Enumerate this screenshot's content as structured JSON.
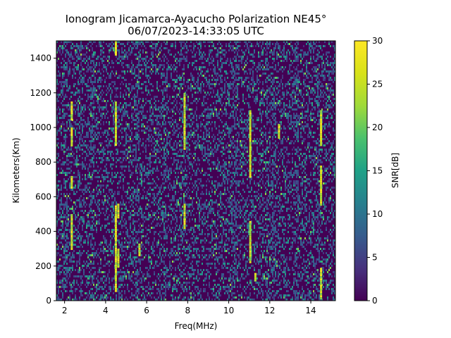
{
  "chart_data": {
    "type": "heatmap",
    "title": "Ionogram Jicamarca-Ayacucho Polarization NE45°",
    "subtitle": "06/07/2023-14:33:05 UTC",
    "xlabel": "Freq(MHz)",
    "ylabel": "Kilometers(Km)",
    "xlim": [
      1.6,
      15.2
    ],
    "ylim": [
      0,
      1500
    ],
    "xticks": [
      2,
      4,
      6,
      8,
      10,
      12,
      14
    ],
    "yticks": [
      0,
      200,
      400,
      600,
      800,
      1000,
      1200,
      1400
    ],
    "colorbar": {
      "label": "SNR[dB]",
      "range": [
        0,
        30
      ],
      "ticks": [
        0,
        5,
        10,
        15,
        20,
        25,
        30
      ],
      "colormap": "viridis"
    },
    "grid": false,
    "noise_floor_color": "#440154",
    "strong_echo_traces": [
      {
        "freq_mhz": 2.35,
        "km_ranges": [
          [
            300,
            500
          ],
          [
            650,
            720
          ],
          [
            900,
            1000
          ],
          [
            1050,
            1150
          ]
        ]
      },
      {
        "freq_mhz": 4.5,
        "km_ranges": [
          [
            50,
            550
          ],
          [
            900,
            1150
          ],
          [
            1420,
            1500
          ]
        ]
      },
      {
        "freq_mhz": 4.62,
        "km_ranges": [
          [
            200,
            300
          ],
          [
            480,
            560
          ]
        ]
      },
      {
        "freq_mhz": 5.65,
        "km_ranges": [
          [
            260,
            330
          ]
        ]
      },
      {
        "freq_mhz": 7.85,
        "km_ranges": [
          [
            420,
            560
          ],
          [
            880,
            1200
          ]
        ]
      },
      {
        "freq_mhz": 11.05,
        "km_ranges": [
          [
            220,
            460
          ],
          [
            720,
            1100
          ]
        ]
      },
      {
        "freq_mhz": 11.3,
        "km_ranges": [
          [
            120,
            160
          ]
        ]
      },
      {
        "freq_mhz": 12.45,
        "km_ranges": [
          [
            940,
            1020
          ]
        ]
      },
      {
        "freq_mhz": 14.5,
        "km_ranges": [
          [
            10,
            190
          ],
          [
            560,
            780
          ],
          [
            900,
            1100
          ]
        ]
      }
    ],
    "moderate_echo_columns": [
      2.0,
      2.8,
      3.3,
      5.5,
      6.9,
      7.7,
      10.1,
      10.3,
      11.9,
      12.2,
      13.3,
      14.3
    ]
  }
}
